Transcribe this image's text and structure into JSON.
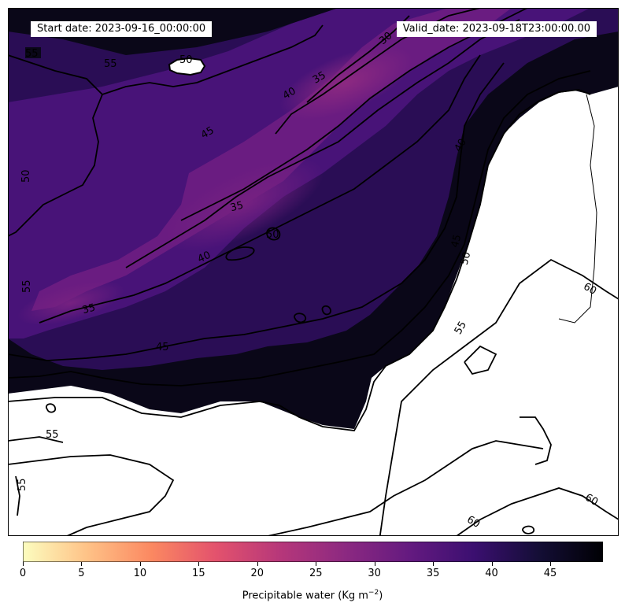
{
  "header": {
    "start_date": "Start date: 2023-09-16_00:00:00",
    "valid_date": "Valid_date: 2023-09-18T23:00:00.00"
  },
  "colorbar": {
    "label_main": "Precipitable water (Kg m",
    "label_exp": "−2",
    "label_close": ")",
    "min": 0,
    "max": 49.5,
    "ticks": [
      "0",
      "5",
      "10",
      "15",
      "20",
      "25",
      "30",
      "35",
      "40",
      "45"
    ],
    "colormap": "magma_r",
    "stops": [
      "#fcfdbf",
      "#fec287",
      "#fb8861",
      "#e3526d",
      "#b6377a",
      "#8c2981",
      "#641a80",
      "#3b0f70",
      "#140e36",
      "#000004"
    ]
  },
  "contours": {
    "line_color": "#000000",
    "labels": [
      "55",
      "55",
      "50",
      "30",
      "35",
      "40",
      "45",
      "35",
      "40",
      "35",
      "45",
      "40",
      "45",
      "50",
      "55",
      "60",
      "55",
      "55",
      "60",
      "60",
      "50",
      "50",
      "55"
    ]
  },
  "land_color": "#ffffff"
}
